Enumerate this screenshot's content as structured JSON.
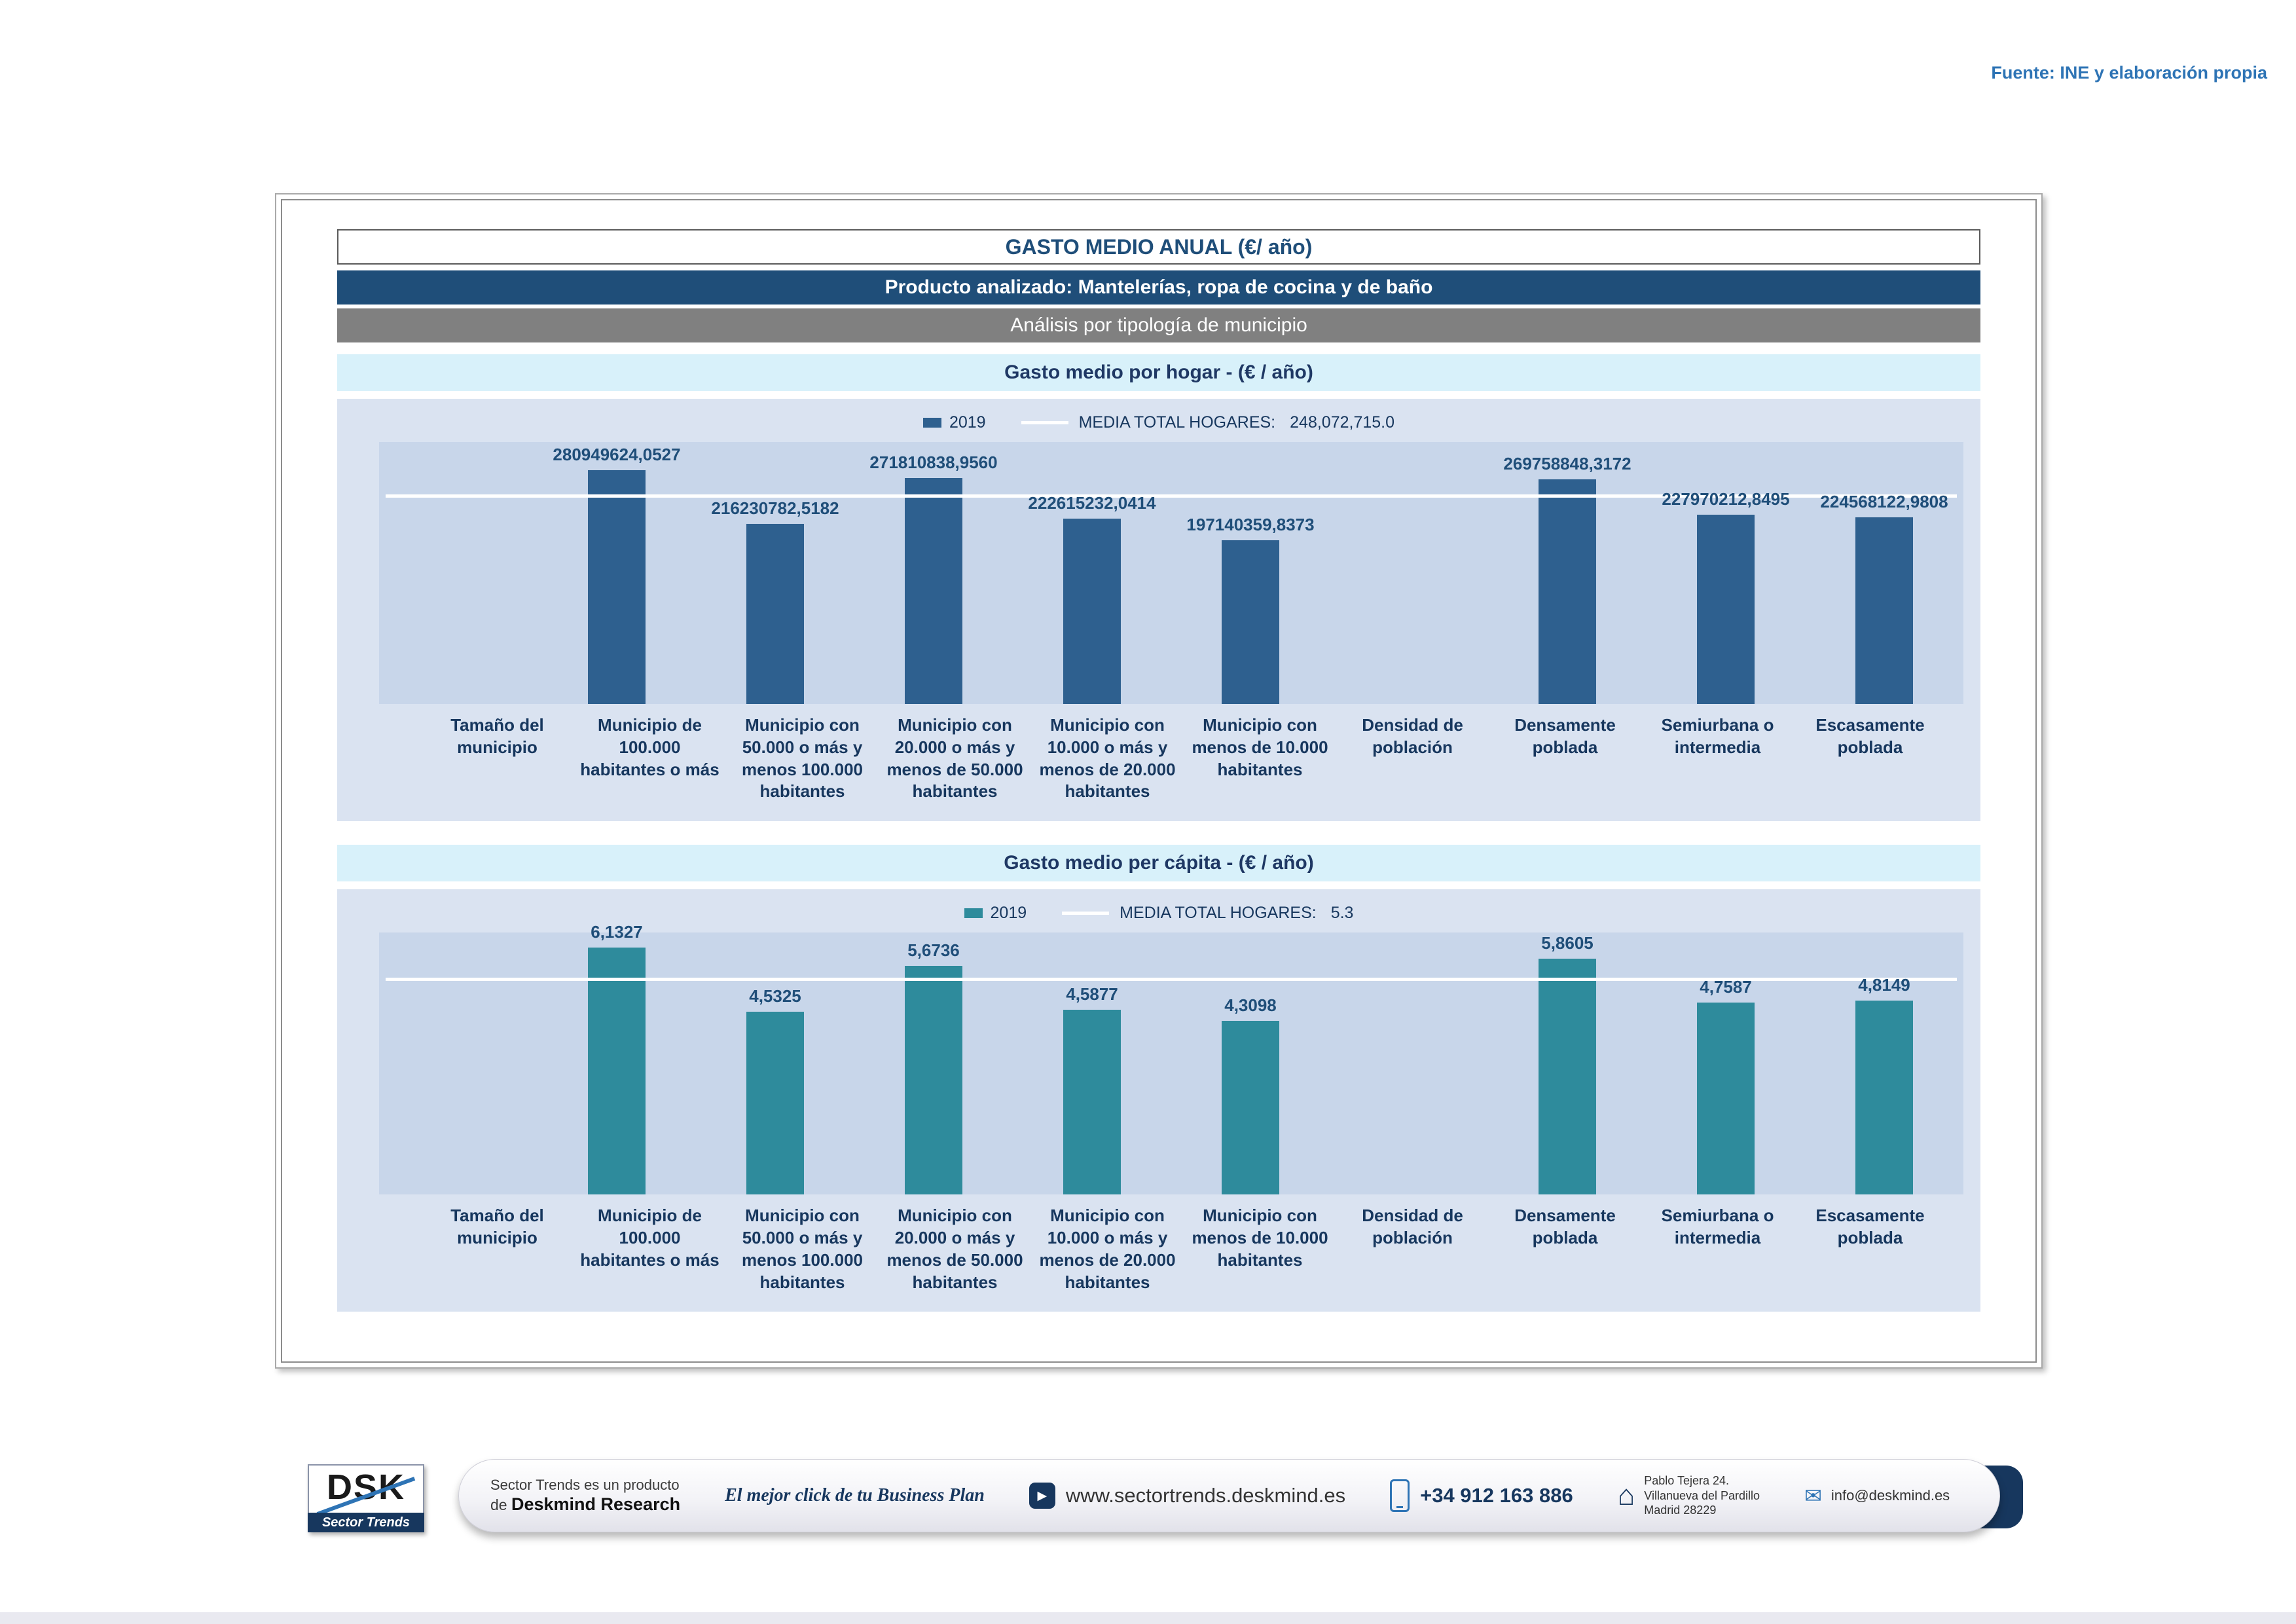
{
  "meta": {
    "source_note": "Fuente: INE y elaboración propia"
  },
  "header": {
    "title": "GASTO MEDIO ANUAL (€/ año)",
    "product": "Producto analizado: Mantelerías, ropa de cocina y de baño",
    "analysis": "Análisis por tipología de municipio"
  },
  "sections": {
    "hogar_title": "Gasto medio por hogar -  (€ / año)",
    "capita_title": "Gasto medio per cápita -  (€ / año)"
  },
  "chart_data": [
    {
      "type": "bar",
      "title": "Gasto medio por hogar - (€ / año)",
      "series_label": "2019",
      "bar_color": "#2E608F",
      "media_label": "MEDIA TOTAL  HOGARES:",
      "media_value_text": "248,072,715.0",
      "media_value": 248072715.0,
      "media_line_color": "#FFFFFF",
      "legend_position": "top-center",
      "grid": false,
      "ylim": [
        0,
        315000000
      ],
      "categories": [
        "Tamaño del municipio",
        "Municipio de 100.000 habitantes o más",
        "Municipio con 50.000 o más y menos 100.000 habitantes",
        "Municipio con 20.000 o más y menos de 50.000 habitantes",
        "Municipio con 10.000 o más y menos de 20.000 habitantes",
        "Municipio con menos de 10.000 habitantes",
        "Densidad de población",
        "Densamente poblada",
        "Semiurbana o intermedia",
        "Escasamente poblada"
      ],
      "values": [
        null,
        280949624.0527,
        216230782.5182,
        271810838.956,
        222615232.0414,
        197140359.8373,
        null,
        269758848.3172,
        227970212.8495,
        224568122.9808
      ],
      "value_labels": [
        "",
        "280949624,0527",
        "216230782,5182",
        "271810838,9560",
        "222615232,0414",
        "197140359,8373",
        "",
        "269758848,3172",
        "227970212,8495",
        "224568122,9808"
      ]
    },
    {
      "type": "bar",
      "title": "Gasto medio per cápita - (€ / año)",
      "series_label": "2019",
      "bar_color": "#2E8B9C",
      "media_label": "MEDIA TOTAL  HOGARES:",
      "media_value_text": "5.3",
      "media_value": 5.3,
      "media_line_color": "#FFFFFF",
      "legend_position": "top-center",
      "grid": false,
      "ylim": [
        0,
        6.5
      ],
      "categories": [
        "Tamaño del municipio",
        "Municipio de 100.000 habitantes o más",
        "Municipio con 50.000 o más y menos 100.000 habitantes",
        "Municipio con 20.000 o más y menos de 50.000 habitantes",
        "Municipio con 10.000 o más y menos de 20.000 habitantes",
        "Municipio con menos de 10.000 habitantes",
        "Densidad de población",
        "Densamente poblada",
        "Semiurbana o intermedia",
        "Escasamente poblada"
      ],
      "values": [
        null,
        6.1327,
        4.5325,
        5.6736,
        4.5877,
        4.3098,
        null,
        5.8605,
        4.7587,
        4.8149
      ],
      "value_labels": [
        "",
        "6,1327",
        "4,5325",
        "5,6736",
        "4,5877",
        "4,3098",
        "",
        "5,8605",
        "4,7587",
        "4,8149"
      ]
    }
  ],
  "footer": {
    "logo_acronym": "DSK",
    "logo_tagline": "Sector Trends",
    "product_note_line1": "Sector Trends es un producto",
    "product_note_prefix": "de ",
    "product_note_brand": "Deskmind Research",
    "slogan": "El mejor click de tu Business Plan",
    "website": "www.sectortrends.deskmind.es",
    "phone": "+34 912 163 886",
    "address_line1": "Pablo Tejera 24.",
    "address_line2": "Villanueva del Pardillo",
    "address_line3": "Madrid 28229",
    "email": "info@deskmind.es",
    "icons": {
      "website_arrow": "▶",
      "address_home": "⌂",
      "email_mail": "✉"
    }
  }
}
